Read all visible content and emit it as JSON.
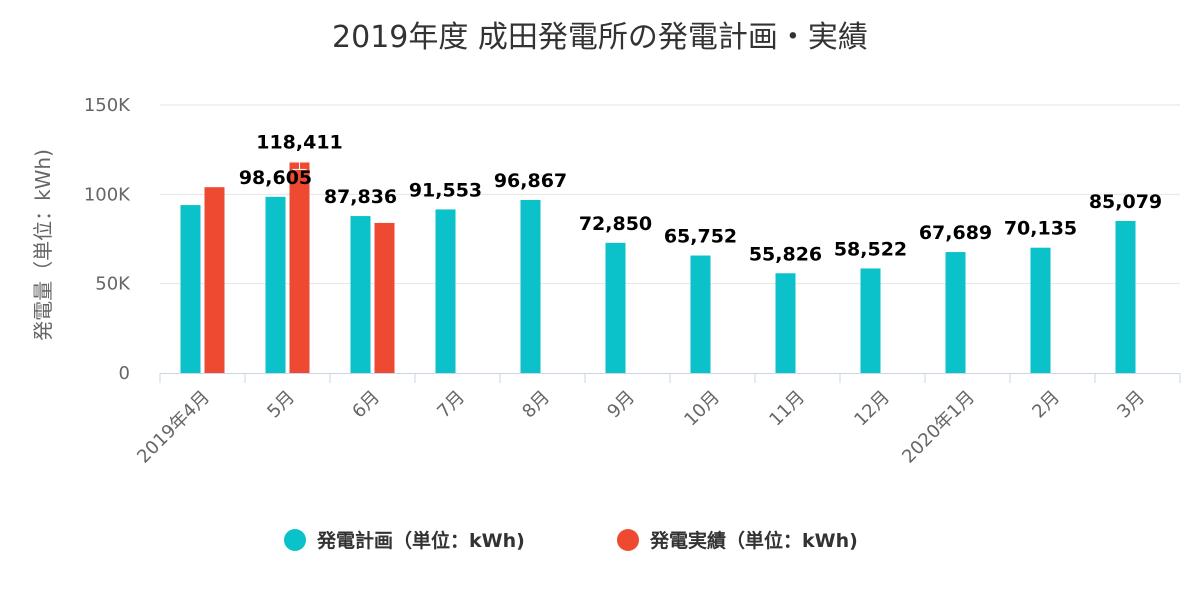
{
  "chart_data": {
    "type": "bar",
    "title": "2019年度 成田発電所の発電計画・実績",
    "xlabel": "",
    "ylabel": "発電量（単位：kWh)",
    "ylim": [
      0,
      150000
    ],
    "yticks": [
      {
        "value": 0,
        "label": "0"
      },
      {
        "value": 50000,
        "label": "50K"
      },
      {
        "value": 100000,
        "label": "100K"
      },
      {
        "value": 150000,
        "label": "150K"
      }
    ],
    "categories": [
      "2019年4月",
      "5月",
      "6月",
      "7月",
      "8月",
      "9月",
      "10月",
      "11月",
      "12月",
      "2020年1月",
      "2月",
      "3月"
    ],
    "grid": true,
    "legend_position": "bottom",
    "series": [
      {
        "name": "発電計画（単位：kWh)",
        "color": "#0bc2cb",
        "values": [
          94000,
          98605,
          87836,
          91553,
          96867,
          72850,
          65752,
          55826,
          58522,
          67689,
          70135,
          85079
        ],
        "labels": [
          null,
          "98,605",
          "87,836",
          "91,553",
          "96,867",
          "72,850",
          "65,752",
          "55,826",
          "58,522",
          "67,689",
          "70,135",
          "85,079"
        ]
      },
      {
        "name": "発電実績（単位：kWh)",
        "color": "#ee4a31",
        "values": [
          104000,
          118411,
          84000,
          null,
          null,
          null,
          null,
          null,
          null,
          null,
          null,
          null
        ],
        "labels": [
          null,
          "118,411",
          null,
          null,
          null,
          null,
          null,
          null,
          null,
          null,
          null,
          null
        ]
      }
    ]
  }
}
